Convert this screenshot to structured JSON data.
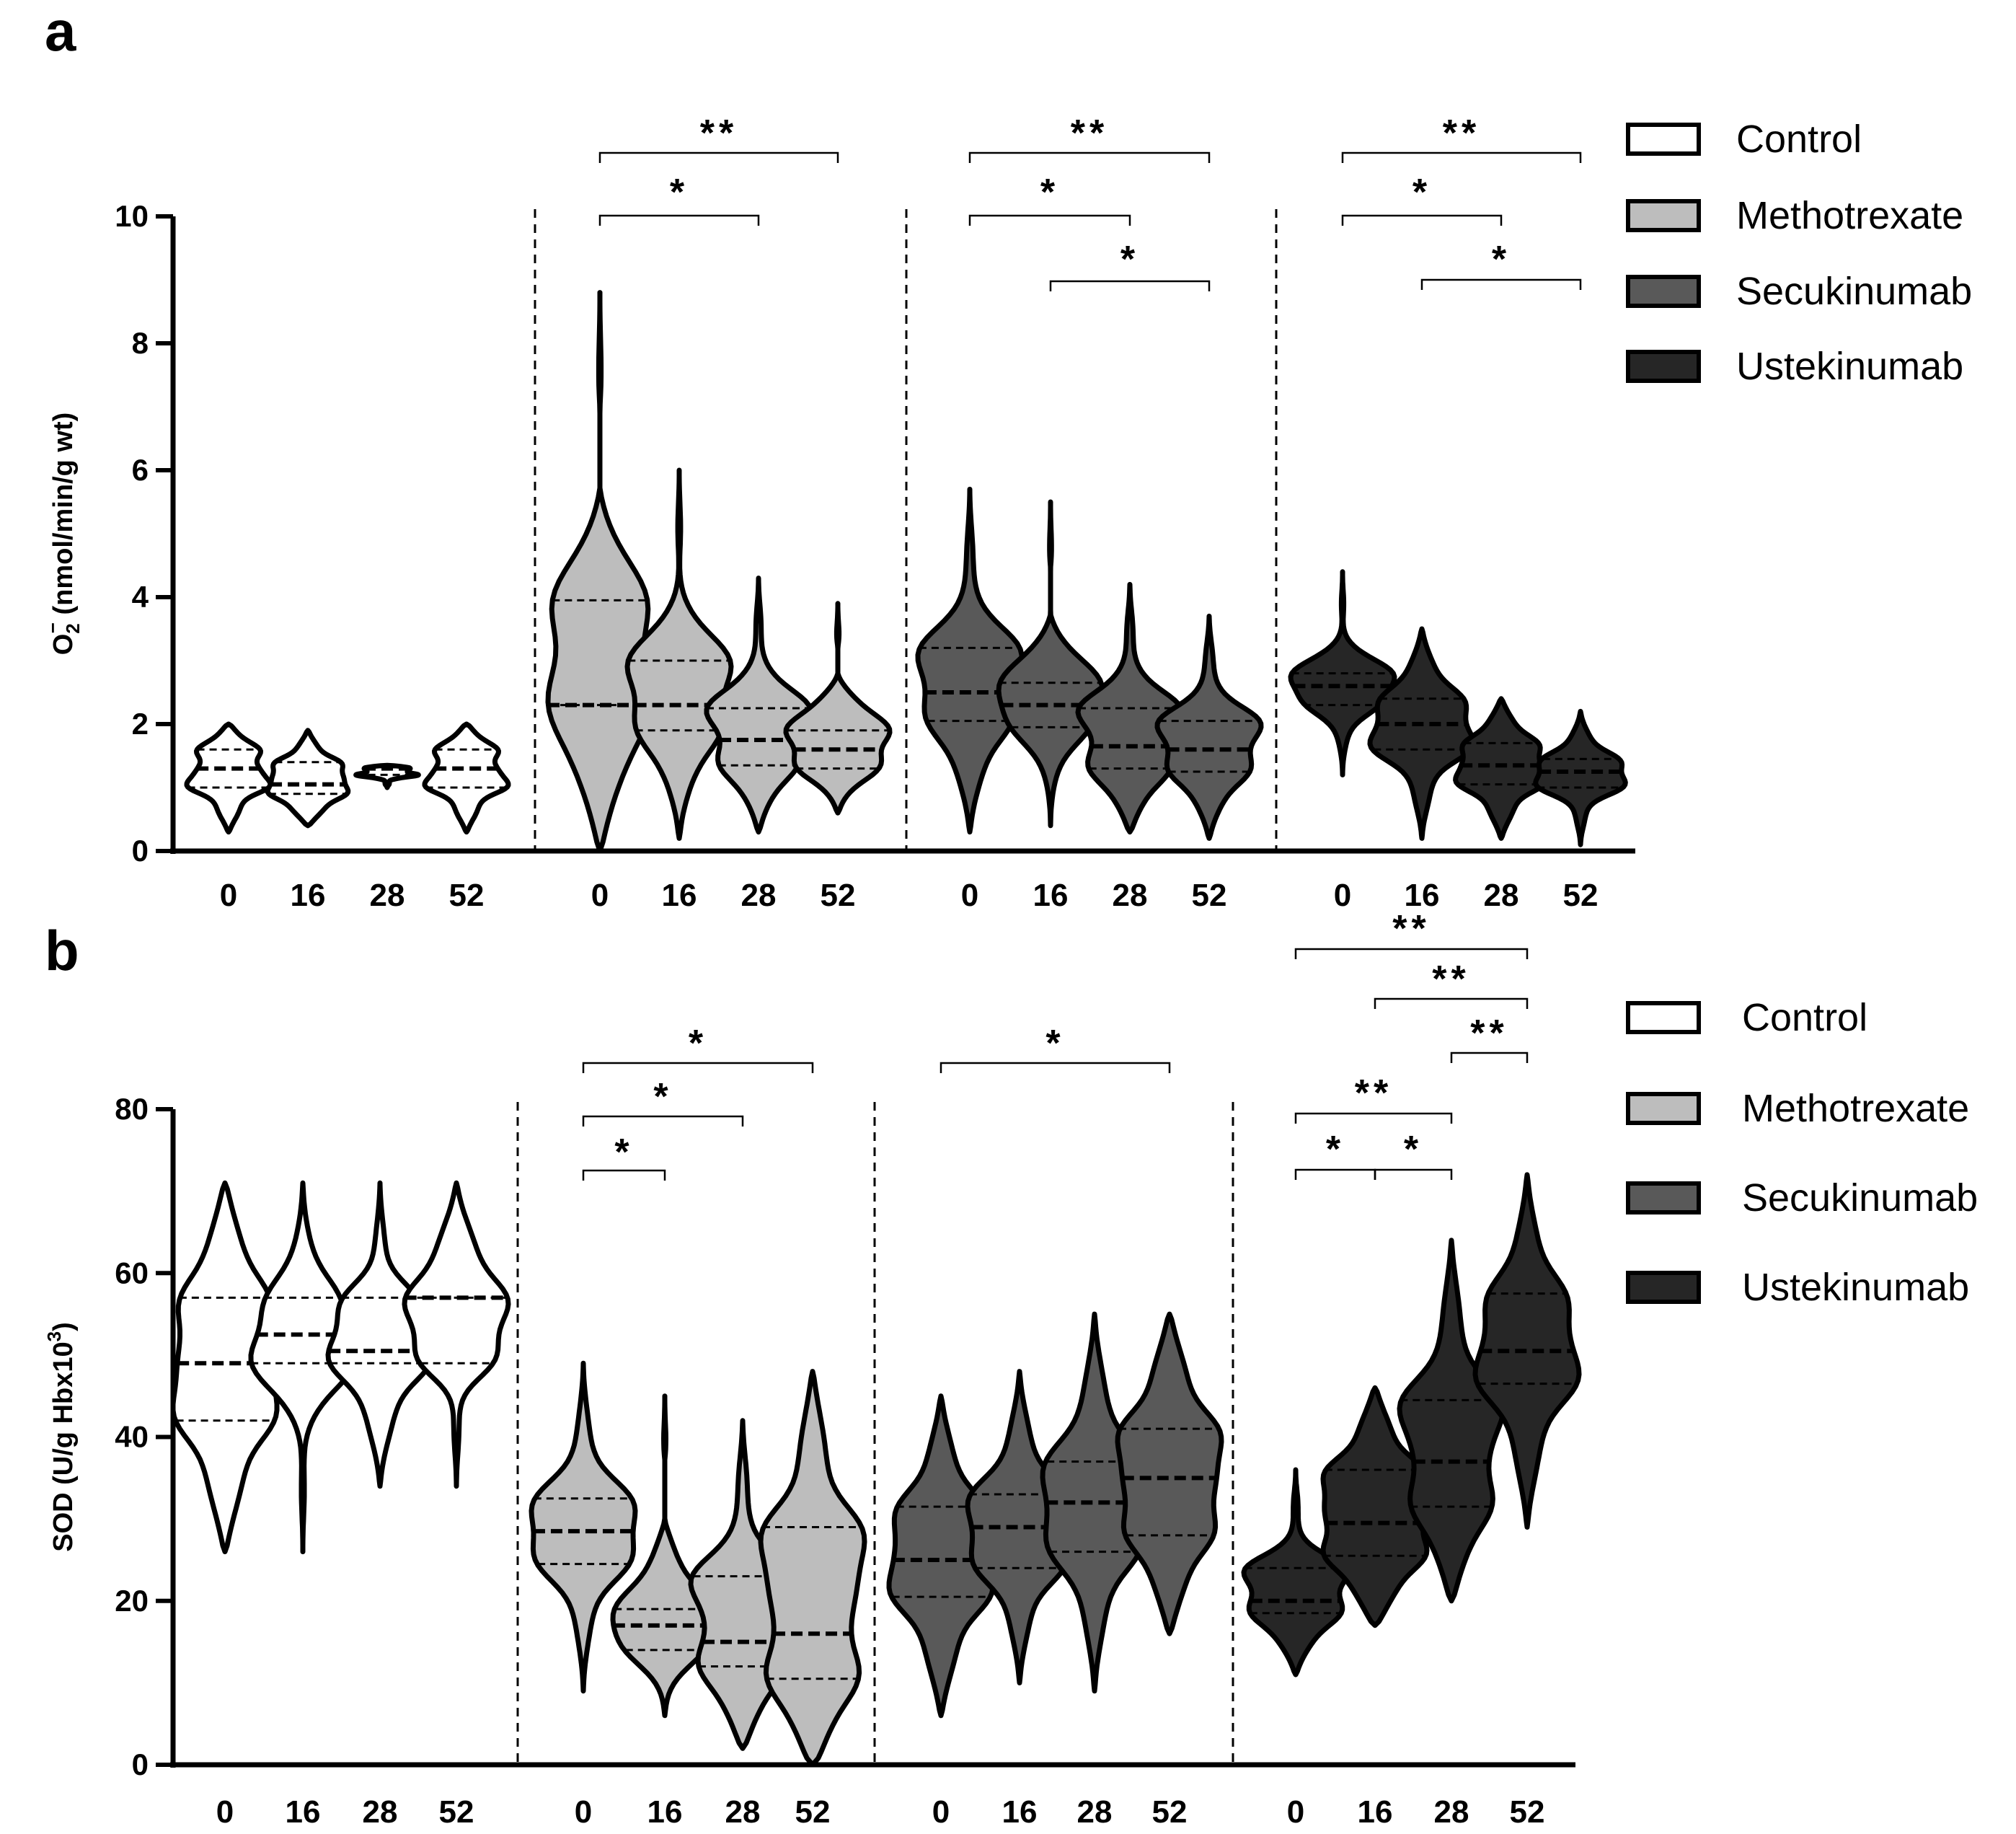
{
  "chart_data": [
    {
      "panel": "a",
      "type": "violin",
      "ylabel_main": "O",
      "ylabel_sub": "2",
      "ylabel_sup": "−",
      "ylabel_rest": " (nmol/min/g wt)",
      "ylim": [
        0,
        10
      ],
      "yticks": [
        "0",
        "2",
        "4",
        "6",
        "8",
        "10"
      ],
      "x_tick_labels": [
        "0",
        "16",
        "28",
        "52"
      ],
      "legend": [
        "Control",
        "Methotrexate",
        "Secukinumab",
        "Ustekinumab"
      ],
      "groups": [
        {
          "name": "Control",
          "color": "#ffffff",
          "violins": [
            {
              "x": "0",
              "min": 0.3,
              "max": 2.0,
              "median": 1.3,
              "q1": 1.0,
              "q3": 1.6
            },
            {
              "x": "16",
              "min": 0.4,
              "max": 1.9,
              "median": 1.05,
              "q1": 0.9,
              "q3": 1.4
            },
            {
              "x": "28",
              "min": 1.0,
              "max": 1.35,
              "median": 1.3,
              "q1": 1.2,
              "q3": 1.32
            },
            {
              "x": "52",
              "min": 0.3,
              "max": 2.0,
              "median": 1.3,
              "q1": 1.0,
              "q3": 1.6
            }
          ]
        },
        {
          "name": "Methotrexate",
          "color": "#bdbdbd",
          "violins": [
            {
              "x": "0",
              "min": 0.0,
              "max": 8.8,
              "median": 2.3,
              "q1": 2.3,
              "q3": 3.95
            },
            {
              "x": "16",
              "min": 0.2,
              "max": 6.0,
              "median": 2.3,
              "q1": 1.9,
              "q3": 3.0
            },
            {
              "x": "28",
              "min": 0.3,
              "max": 4.3,
              "median": 1.75,
              "q1": 1.35,
              "q3": 2.25
            },
            {
              "x": "52",
              "min": 0.6,
              "max": 3.9,
              "median": 1.6,
              "q1": 1.3,
              "q3": 1.9
            }
          ]
        },
        {
          "name": "Secukinumab",
          "color": "#595959",
          "violins": [
            {
              "x": "0",
              "min": 0.3,
              "max": 5.7,
              "median": 2.5,
              "q1": 2.05,
              "q3": 3.2
            },
            {
              "x": "16",
              "min": 0.4,
              "max": 5.5,
              "median": 2.3,
              "q1": 1.95,
              "q3": 2.65
            },
            {
              "x": "28",
              "min": 0.3,
              "max": 4.2,
              "median": 1.65,
              "q1": 1.3,
              "q3": 2.25
            },
            {
              "x": "52",
              "min": 0.2,
              "max": 3.7,
              "median": 1.6,
              "q1": 1.25,
              "q3": 2.05
            }
          ]
        },
        {
          "name": "Ustekinumab",
          "color": "#262626",
          "violins": [
            {
              "x": "0",
              "min": 1.2,
              "max": 4.4,
              "median": 2.6,
              "q1": 2.3,
              "q3": 2.8
            },
            {
              "x": "16",
              "min": 0.2,
              "max": 3.5,
              "median": 2.0,
              "q1": 1.6,
              "q3": 2.4
            },
            {
              "x": "28",
              "min": 0.2,
              "max": 2.4,
              "median": 1.35,
              "q1": 1.05,
              "q3": 1.7
            },
            {
              "x": "52",
              "min": 0.1,
              "max": 2.2,
              "median": 1.25,
              "q1": 1.0,
              "q3": 1.45
            }
          ]
        }
      ],
      "significance": [
        {
          "group": "Methotrexate",
          "from": "0",
          "to": "52",
          "label": "**"
        },
        {
          "group": "Methotrexate",
          "from": "0",
          "to": "28",
          "label": "*"
        },
        {
          "group": "Secukinumab",
          "from": "0",
          "to": "52",
          "label": "**"
        },
        {
          "group": "Secukinumab",
          "from": "0",
          "to": "28",
          "label": "*"
        },
        {
          "group": "Secukinumab",
          "from": "16",
          "to": "52",
          "label": "*"
        },
        {
          "group": "Ustekinumab",
          "from": "0",
          "to": "52",
          "label": "**"
        },
        {
          "group": "Ustekinumab",
          "from": "0",
          "to": "28",
          "label": "*"
        },
        {
          "group": "Ustekinumab",
          "from": "16",
          "to": "52",
          "label": "*"
        }
      ]
    },
    {
      "panel": "b",
      "type": "violin",
      "ylabel_main": "SOD (U/g Hbx10",
      "ylabel_sup": "3",
      "ylabel_rest": ")",
      "ylim": [
        0,
        80
      ],
      "yticks": [
        "0",
        "20",
        "40",
        "60",
        "80"
      ],
      "x_tick_labels": [
        "0",
        "16",
        "28",
        "52"
      ],
      "legend": [
        "Control",
        "Methotrexate",
        "Secukinumab",
        "Ustekinumab"
      ],
      "groups": [
        {
          "name": "Control",
          "color": "#ffffff",
          "violins": [
            {
              "x": "0",
              "min": 26,
              "max": 71,
              "median": 49,
              "q1": 42,
              "q3": 57
            },
            {
              "x": "16",
              "min": 26,
              "max": 71,
              "median": 52.5,
              "q1": 49,
              "q3": 57
            },
            {
              "x": "28",
              "min": 34,
              "max": 71,
              "median": 50.5,
              "q1": 49,
              "q3": 57
            },
            {
              "x": "52",
              "min": 34,
              "max": 71,
              "median": 57,
              "q1": 49,
              "q3": 57
            }
          ]
        },
        {
          "name": "Methotrexate",
          "color": "#bdbdbd",
          "violins": [
            {
              "x": "0",
              "min": 9,
              "max": 49,
              "median": 28.5,
              "q1": 24.5,
              "q3": 32.5
            },
            {
              "x": "16",
              "min": 6,
              "max": 45,
              "median": 17,
              "q1": 14,
              "q3": 19
            },
            {
              "x": "28",
              "min": 2,
              "max": 42,
              "median": 15,
              "q1": 12,
              "q3": 23
            },
            {
              "x": "52",
              "min": 0,
              "max": 48,
              "median": 16,
              "q1": 10.5,
              "q3": 29
            }
          ]
        },
        {
          "name": "Secukinumab",
          "color": "#595959",
          "violins": [
            {
              "x": "0",
              "min": 6,
              "max": 45,
              "median": 25,
              "q1": 20.5,
              "q3": 31.5
            },
            {
              "x": "16",
              "min": 10,
              "max": 48,
              "median": 29,
              "q1": 24,
              "q3": 33
            },
            {
              "x": "28",
              "min": 9,
              "max": 55,
              "median": 32,
              "q1": 26,
              "q3": 37
            },
            {
              "x": "52",
              "min": 16,
              "max": 55,
              "median": 35,
              "q1": 28,
              "q3": 41
            }
          ]
        },
        {
          "name": "Ustekinumab",
          "color": "#262626",
          "violins": [
            {
              "x": "0",
              "min": 11,
              "max": 36,
              "median": 20,
              "q1": 18.5,
              "q3": 24
            },
            {
              "x": "16",
              "min": 17,
              "max": 46,
              "median": 29.5,
              "q1": 25.5,
              "q3": 36
            },
            {
              "x": "28",
              "min": 20,
              "max": 64,
              "median": 37,
              "q1": 31.5,
              "q3": 44.5
            },
            {
              "x": "52",
              "min": 29,
              "max": 72,
              "median": 50.5,
              "q1": 46.5,
              "q3": 57.5
            }
          ]
        }
      ],
      "significance": [
        {
          "group": "Methotrexate",
          "from": "0",
          "to": "52",
          "label": "*"
        },
        {
          "group": "Methotrexate",
          "from": "0",
          "to": "28",
          "label": "*"
        },
        {
          "group": "Methotrexate",
          "from": "0",
          "to": "16",
          "label": "*"
        },
        {
          "group": "Secukinumab",
          "from": "0",
          "to": "52",
          "label": "*"
        },
        {
          "group": "Ustekinumab",
          "from": "0",
          "to": "52",
          "label": "**"
        },
        {
          "group": "Ustekinumab",
          "from": "16",
          "to": "52",
          "label": "**"
        },
        {
          "group": "Ustekinumab",
          "from": "28",
          "to": "52",
          "label": "**"
        },
        {
          "group": "Ustekinumab",
          "from": "0",
          "to": "28",
          "label": "**"
        },
        {
          "group": "Ustekinumab",
          "from": "0",
          "to": "16",
          "label": "*"
        },
        {
          "group": "Ustekinumab",
          "from": "16",
          "to": "28",
          "label": "*"
        }
      ]
    }
  ]
}
